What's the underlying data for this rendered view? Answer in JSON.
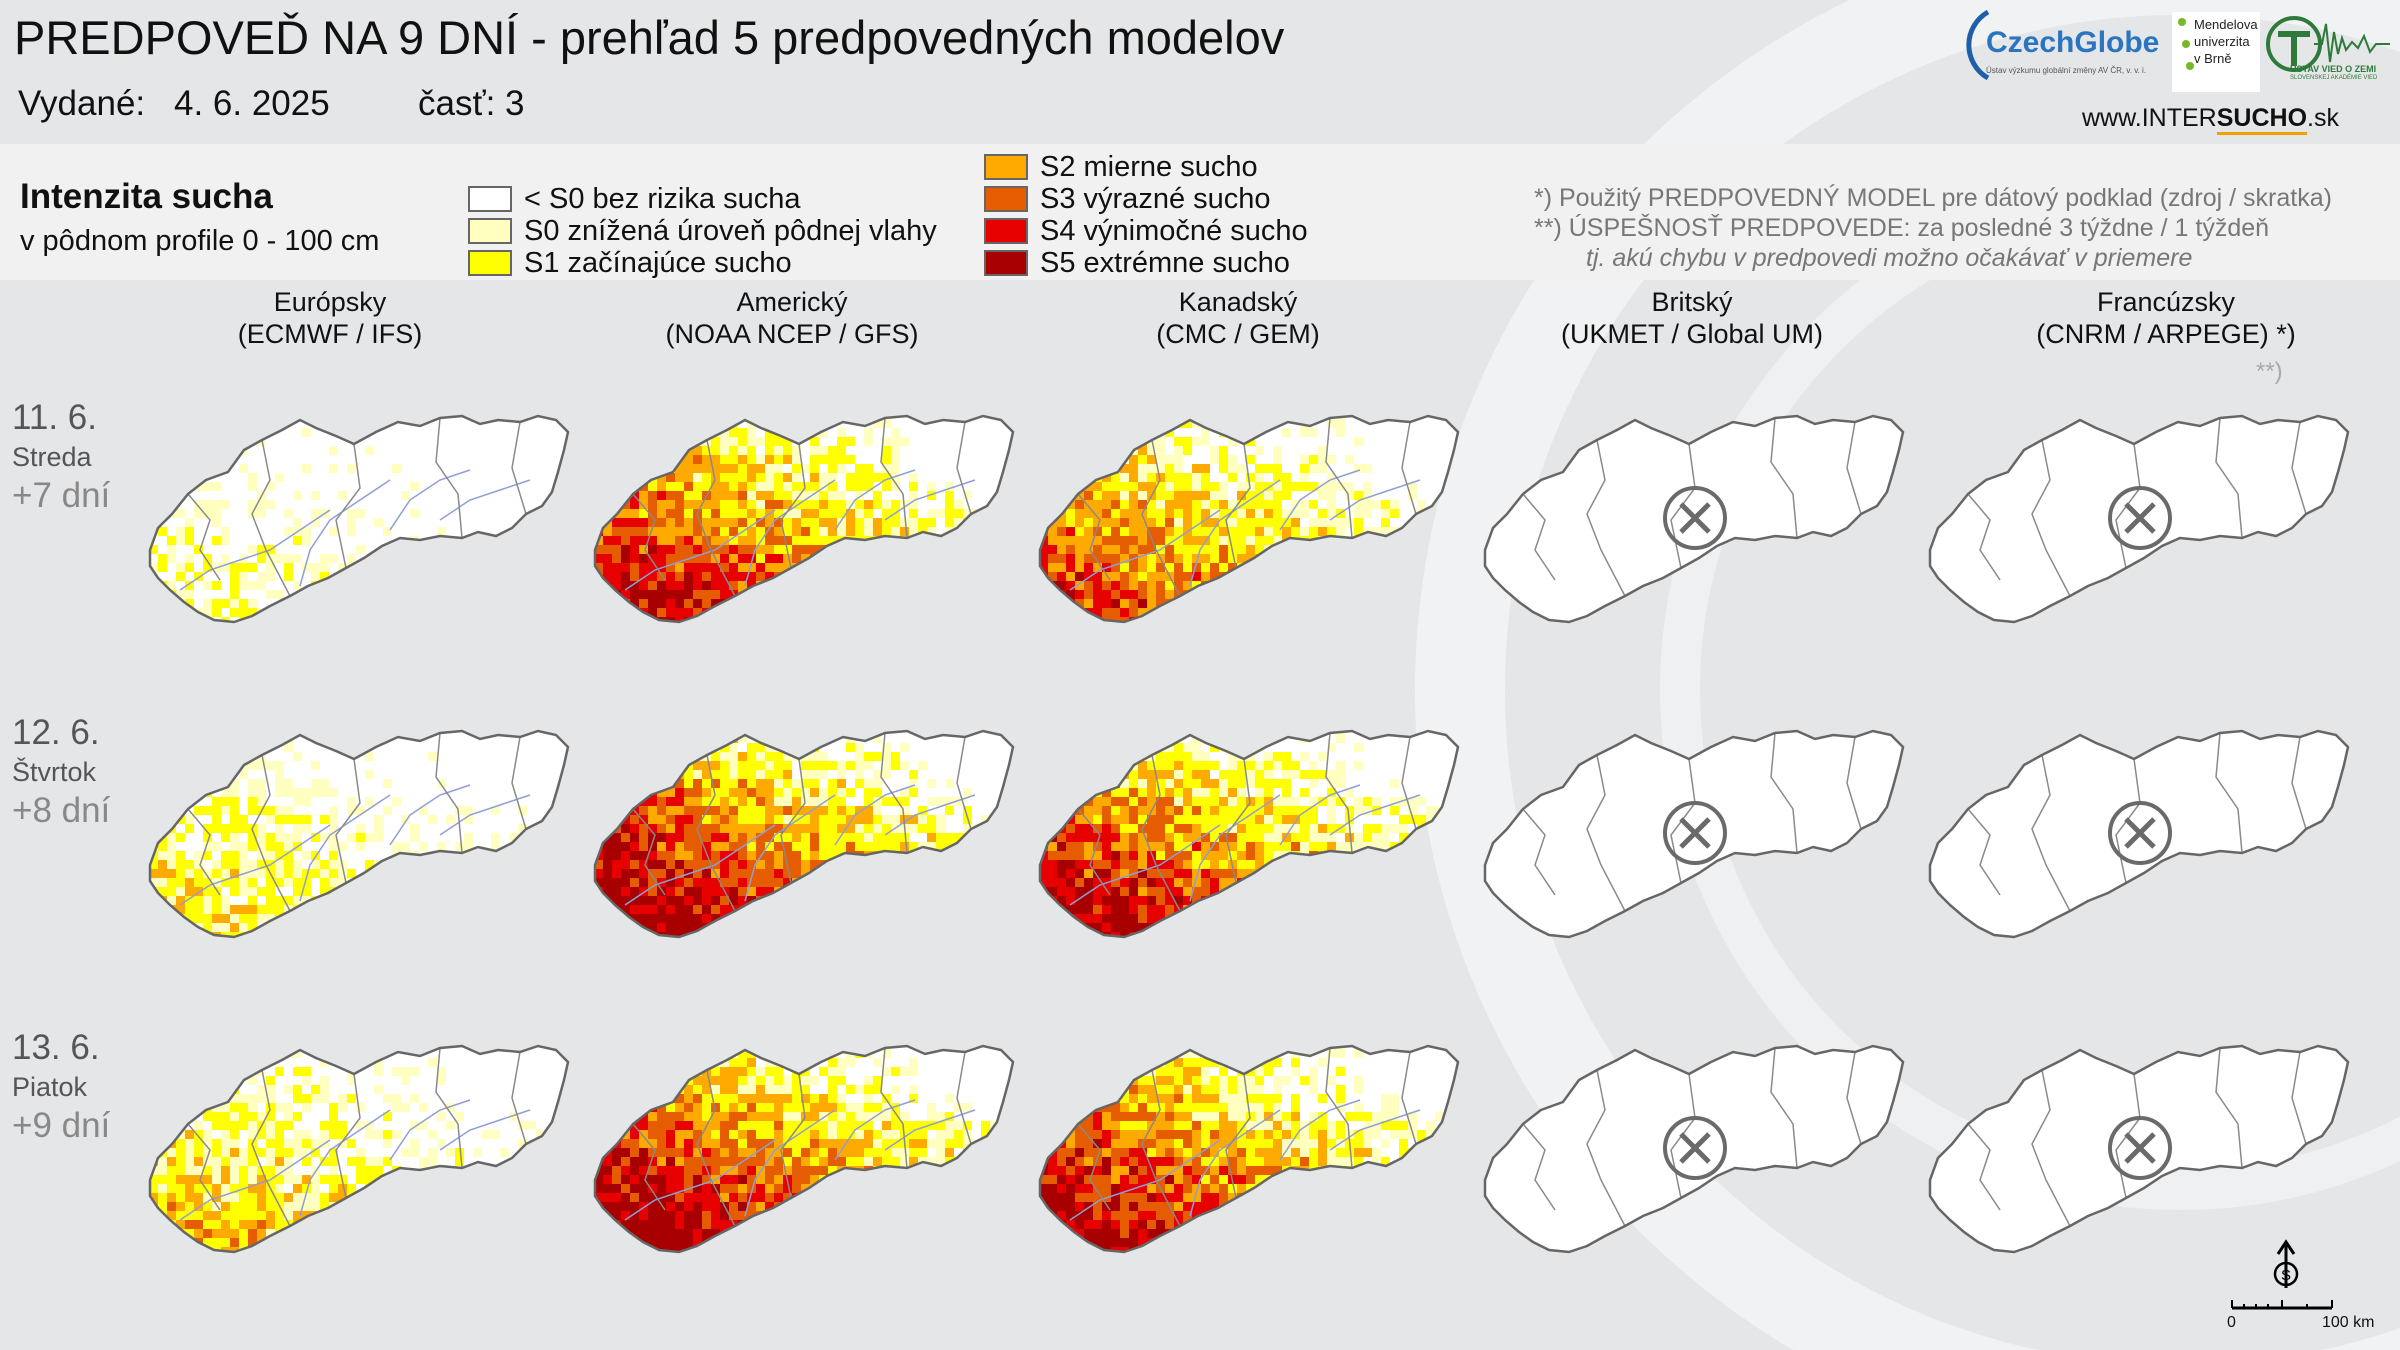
{
  "header": {
    "title": "PREDPOVEĎ NA 9 DNÍ - prehľad 5 predpovedných modelov",
    "issued_label": "Vydané:",
    "issued_date": "4. 6. 2025",
    "part_label": "časť: 3"
  },
  "logos": {
    "czechglobe": "CzechGlobe",
    "czechglobe_sub": "Ústav výzkumu globální změny AV ČR, v. v. i.",
    "mendel": [
      "Mendelova",
      "univerzita",
      "v Brně"
    ],
    "ustav": "ÚSTAV VIED O ZEMI",
    "ustav_sub": "SLOVENSKEJ AKADÉMIE VIED",
    "website_prefix": "www.INTER",
    "website_bold": "SUCHO",
    "website_suffix": ".sk"
  },
  "legend": {
    "title": "Intenzita sucha",
    "subtitle": "v pôdnom profile 0 - 100 cm",
    "items": [
      {
        "label": "< S0 bez rizika sucha",
        "color": "#ffffff"
      },
      {
        "label": "S0 znížená úroveň pôdnej vlahy",
        "color": "#ffffc0"
      },
      {
        "label": "S1 začínajúce sucho",
        "color": "#ffff00"
      },
      {
        "label": "S2 mierne sucho",
        "color": "#ffaa00"
      },
      {
        "label": "S3 výrazné sucho",
        "color": "#e65c00"
      },
      {
        "label": "S4 výnimočné sucho",
        "color": "#e60000"
      },
      {
        "label": "S5 extrémne sucho",
        "color": "#a80000"
      }
    ]
  },
  "notes": {
    "line1": "*)   Použitý PREDPOVEDNÝ MODEL pre dátový podklad (zdroj / skratka)",
    "line2": "**) ÚSPEŠNOSŤ PREDPOVEDE: za posledné 3 týždne / 1 týždeň",
    "line3": "tj. akú chybu v predpovedi možno očakávať v priemere"
  },
  "models": [
    {
      "name": "Európsky",
      "code": "(ECMWF / IFS)",
      "available": true
    },
    {
      "name": "Americký",
      "code": "(NOAA NCEP / GFS)",
      "available": true
    },
    {
      "name": "Kanadský",
      "code": "(CMC / GEM)",
      "available": true
    },
    {
      "name": "Britský",
      "code": "(UKMET / Global UM)",
      "available": false
    },
    {
      "name": "Francúzsky",
      "code": "(CNRM / ARPEGE) *)",
      "available": false
    }
  ],
  "accuracy_marker": "**)",
  "days": [
    {
      "date": "11. 6.",
      "weekday": "Streda",
      "offset": "+7 dní"
    },
    {
      "date": "12. 6.",
      "weekday": "Štvrtok",
      "offset": "+8 dní"
    },
    {
      "date": "13. 6.",
      "weekday": "Piatok",
      "offset": "+9 dní"
    }
  ],
  "map_intensity": [
    [
      0.3,
      0.8,
      0.7,
      null,
      null
    ],
    [
      0.42,
      0.88,
      0.82,
      null,
      null
    ],
    [
      0.5,
      0.9,
      0.86,
      null,
      null
    ]
  ],
  "scale": {
    "start": "0",
    "end": "100 km"
  }
}
